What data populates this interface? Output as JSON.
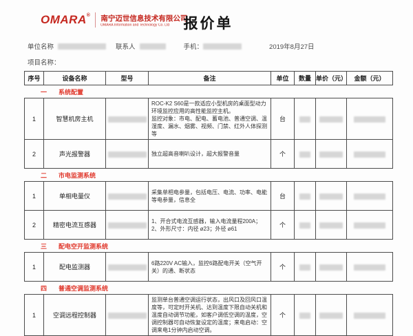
{
  "header": {
    "logo_text": "OMARA",
    "logo_reg": "®",
    "company_cn": "南宁迈世信息技术有限公司",
    "company_en": "OMARA Information and Technology Co. Ltd",
    "title": "报价单"
  },
  "info": {
    "company_label": "单位名称",
    "contact_label": "联系人",
    "phone_label": "手机：",
    "date": "2019年8月27日",
    "project_label": "项目名称："
  },
  "table": {
    "columns": [
      "序号",
      "设备名称",
      "型号",
      "备注",
      "单位",
      "数量",
      "单价（元）",
      "金额（元）"
    ],
    "sections": [
      {
        "num": "一",
        "title": "系统配置",
        "rows": [
          {
            "no": "1",
            "name": "智慧机房主机",
            "remark": "ROC-K2 S60是一款适应小型机房的桌面型动力环境监控应用的高性能监控主机。\n监控对象：市电、配电、蓄电池、普通空调、温湿度、漏水、烟雾、视频、门禁、红外人体探测等",
            "unit": "台"
          },
          {
            "no": "2",
            "name": "声光报警器",
            "remark": "独立超高音喇叭设计，超大报警音量",
            "unit": "个"
          }
        ]
      },
      {
        "num": "二",
        "title": "市电监测系统",
        "rows": [
          {
            "no": "1",
            "name": "单相电量仪",
            "remark": "采集单相电参量，包括电压、电流、功率、电能等电参量，信息全",
            "unit": "台"
          },
          {
            "no": "2",
            "name": "精密电流互感器",
            "remark": "1、开合式电流互感器，输入电流量程200A；\n2、外形尺寸：内径 ø23；外径 ø61",
            "unit": "个"
          }
        ]
      },
      {
        "num": "三",
        "title": "配电空开监测系统",
        "rows": [
          {
            "no": "1",
            "name": "配电监测器",
            "remark": "6路220V AC输入，监控6路配电开关（空气开关）的通、断状态",
            "unit": "个"
          }
        ]
      },
      {
        "num": "四",
        "title": "普通空调监测系统",
        "rows": [
          {
            "no": "1",
            "name": "空调远程控制器",
            "remark": "监测单台普通空调运行状态，出风口及回风口温度等，可定时开关机、达到温度下限自动关机和温度自动调节功能，如客户调低空调的温度，空调控制器可自动恢复设定的温度；来电启动：空调来电1分钟内启动空调。",
            "unit": "个"
          }
        ]
      }
    ]
  },
  "colors": {
    "brand_red": "#c5271f",
    "section_red": "#e0382c",
    "table_border": "#4a4a4a"
  }
}
